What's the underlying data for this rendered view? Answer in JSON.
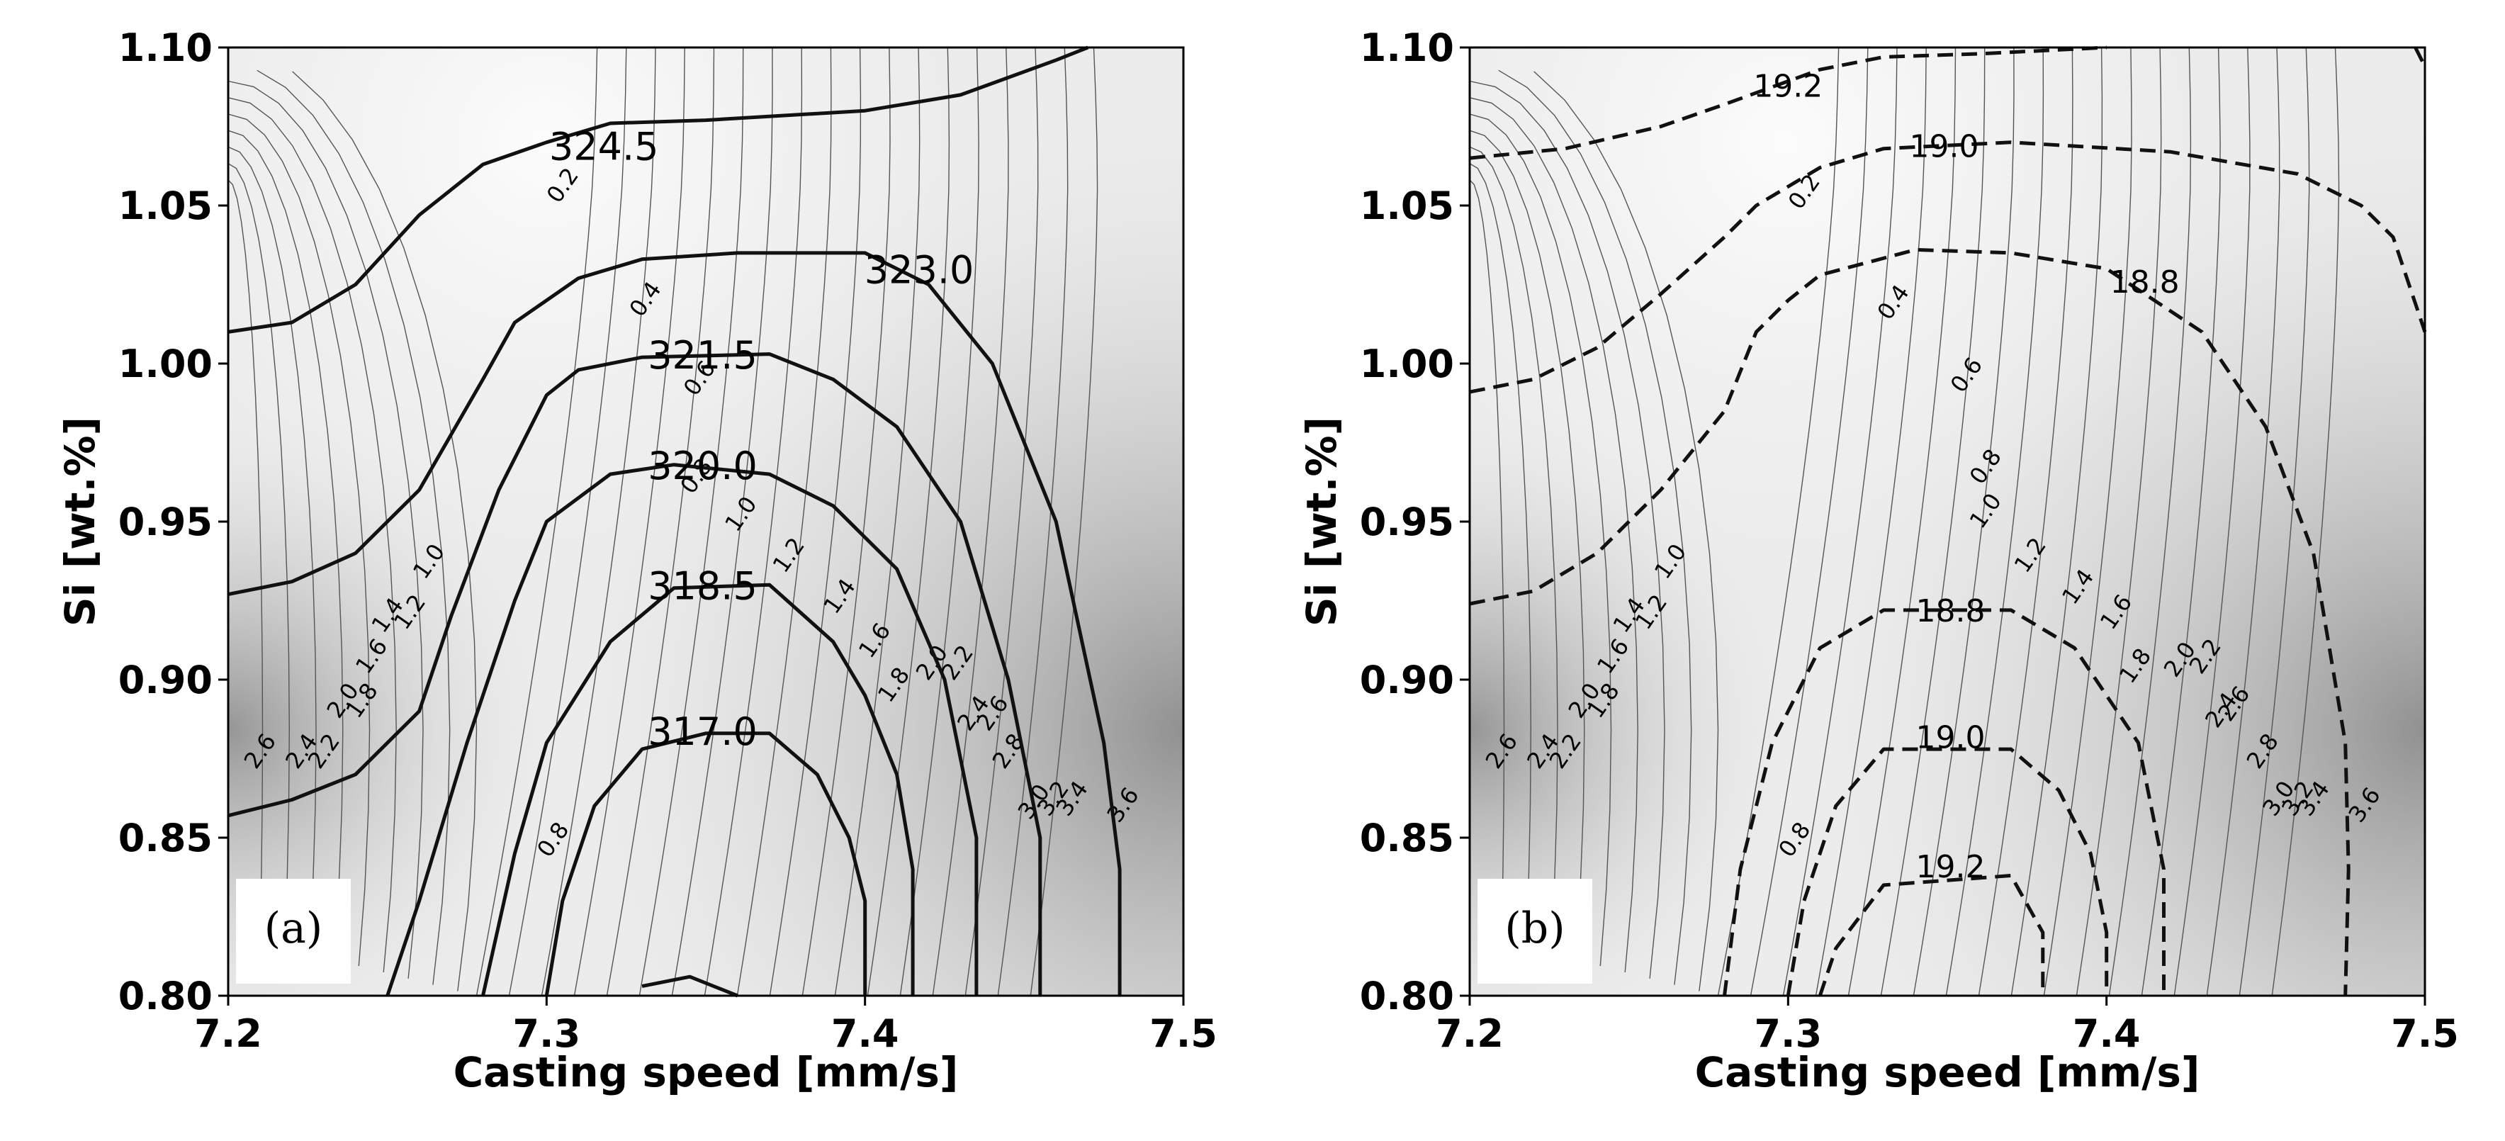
{
  "colors": {
    "bg_light": "#f7f7f7",
    "bg_dark": "#9a9a9a",
    "thin_line": "#555555",
    "thick_line": "#111111"
  },
  "chart_data": [
    {
      "type": "contour",
      "panel_label": "(a)",
      "xlabel": "Casting speed [mm/s]",
      "ylabel": "Si [wt.%]",
      "xlim": [
        7.2,
        7.5
      ],
      "ylim": [
        0.8,
        1.1
      ],
      "xticks": [
        "7.2",
        "7.3",
        "7.4",
        "7.5"
      ],
      "yticks": [
        "0.80",
        "0.85",
        "0.90",
        "0.95",
        "1.00",
        "1.05",
        "1.10"
      ],
      "background_levels": [
        "0.2",
        "0.4",
        "0.6",
        "0.8",
        "1.0",
        "1.2",
        "1.4",
        "1.6",
        "1.8",
        "2.0",
        "2.2",
        "2.4",
        "2.6",
        "2.8",
        "3.0",
        "3.2",
        "3.4",
        "3.6"
      ],
      "background_labels": [
        {
          "text": "0.2",
          "x": 7.307,
          "y": 1.055
        },
        {
          "text": "0.4",
          "x": 7.333,
          "y": 1.019
        },
        {
          "text": "0.6",
          "x": 7.35,
          "y": 0.994
        },
        {
          "text": "0.8",
          "x": 7.349,
          "y": 0.963
        },
        {
          "text": "1.0",
          "x": 7.363,
          "y": 0.951
        },
        {
          "text": "1.2",
          "x": 7.378,
          "y": 0.938
        },
        {
          "text": "1.4",
          "x": 7.394,
          "y": 0.925
        },
        {
          "text": "1.6",
          "x": 7.405,
          "y": 0.911
        },
        {
          "text": "1.8",
          "x": 7.411,
          "y": 0.897
        },
        {
          "text": "2.0",
          "x": 7.423,
          "y": 0.904
        },
        {
          "text": "2.2",
          "x": 7.431,
          "y": 0.904
        },
        {
          "text": "2.4",
          "x": 7.436,
          "y": 0.888
        },
        {
          "text": "2.6",
          "x": 7.442,
          "y": 0.888
        },
        {
          "text": "2.8",
          "x": 7.447,
          "y": 0.876
        },
        {
          "text": "3.0",
          "x": 7.455,
          "y": 0.86
        },
        {
          "text": "3.2",
          "x": 7.461,
          "y": 0.861
        },
        {
          "text": "3.4",
          "x": 7.467,
          "y": 0.861
        },
        {
          "text": "3.6",
          "x": 7.483,
          "y": 0.859
        },
        {
          "text": "1.0",
          "x": 7.265,
          "y": 0.936
        },
        {
          "text": "1.2",
          "x": 7.259,
          "y": 0.92
        },
        {
          "text": "1.4",
          "x": 7.252,
          "y": 0.919
        },
        {
          "text": "1.6",
          "x": 7.247,
          "y": 0.906
        },
        {
          "text": "1.8",
          "x": 7.244,
          "y": 0.892
        },
        {
          "text": "2.0",
          "x": 7.238,
          "y": 0.892
        },
        {
          "text": "2.2",
          "x": 7.232,
          "y": 0.876
        },
        {
          "text": "2.4",
          "x": 7.225,
          "y": 0.876
        },
        {
          "text": "2.6",
          "x": 7.212,
          "y": 0.876
        },
        {
          "text": "0.8",
          "x": 7.304,
          "y": 0.848
        }
      ],
      "overlay_style": "solid",
      "overlay_contours": [
        {
          "label": "324.5",
          "label_at": [
            7.318,
            1.068
          ],
          "points": [
            [
              7.2,
              1.01
            ],
            [
              7.22,
              1.013
            ],
            [
              7.24,
              1.025
            ],
            [
              7.26,
              1.047
            ],
            [
              7.28,
              1.063
            ],
            [
              7.3,
              1.07
            ],
            [
              7.32,
              1.076
            ],
            [
              7.35,
              1.077
            ],
            [
              7.4,
              1.08
            ],
            [
              7.43,
              1.085
            ],
            [
              7.46,
              1.096
            ],
            [
              7.47,
              1.1
            ]
          ]
        },
        {
          "label": "323.0",
          "label_at": [
            7.417,
            1.029
          ],
          "points": [
            [
              7.2,
              0.927
            ],
            [
              7.22,
              0.931
            ],
            [
              7.24,
              0.94
            ],
            [
              7.26,
              0.96
            ],
            [
              7.28,
              0.995
            ],
            [
              7.29,
              1.013
            ],
            [
              7.31,
              1.027
            ],
            [
              7.33,
              1.033
            ],
            [
              7.36,
              1.035
            ],
            [
              7.4,
              1.035
            ],
            [
              7.42,
              1.025
            ],
            [
              7.44,
              1.0
            ],
            [
              7.46,
              0.95
            ],
            [
              7.475,
              0.88
            ],
            [
              7.48,
              0.84
            ],
            [
              7.48,
              0.8
            ]
          ]
        },
        {
          "label": "321.5",
          "label_at": [
            7.349,
            1.002
          ],
          "points": [
            [
              7.2,
              0.857
            ],
            [
              7.22,
              0.862
            ],
            [
              7.24,
              0.87
            ],
            [
              7.26,
              0.89
            ],
            [
              7.27,
              0.92
            ],
            [
              7.285,
              0.96
            ],
            [
              7.3,
              0.99
            ],
            [
              7.31,
              0.998
            ],
            [
              7.33,
              1.002
            ],
            [
              7.37,
              1.003
            ],
            [
              7.39,
              0.995
            ],
            [
              7.41,
              0.98
            ],
            [
              7.43,
              0.95
            ],
            [
              7.445,
              0.9
            ],
            [
              7.455,
              0.85
            ],
            [
              7.455,
              0.8
            ]
          ]
        },
        {
          "label": "320.0",
          "label_at": [
            7.349,
            0.967
          ],
          "points": [
            [
              7.25,
              0.8
            ],
            [
              7.26,
              0.83
            ],
            [
              7.275,
              0.88
            ],
            [
              7.29,
              0.925
            ],
            [
              7.3,
              0.95
            ],
            [
              7.32,
              0.965
            ],
            [
              7.34,
              0.968
            ],
            [
              7.37,
              0.965
            ],
            [
              7.39,
              0.955
            ],
            [
              7.41,
              0.935
            ],
            [
              7.425,
              0.9
            ],
            [
              7.435,
              0.85
            ],
            [
              7.435,
              0.8
            ]
          ]
        },
        {
          "label": "318.5",
          "label_at": [
            7.349,
            0.929
          ],
          "points": [
            [
              7.28,
              0.8
            ],
            [
              7.29,
              0.845
            ],
            [
              7.3,
              0.88
            ],
            [
              7.32,
              0.912
            ],
            [
              7.34,
              0.929
            ],
            [
              7.37,
              0.93
            ],
            [
              7.39,
              0.912
            ],
            [
              7.4,
              0.895
            ],
            [
              7.41,
              0.87
            ],
            [
              7.415,
              0.84
            ],
            [
              7.415,
              0.8
            ]
          ]
        },
        {
          "label": "317.0",
          "label_at": [
            7.349,
            0.883
          ],
          "points": [
            [
              7.3,
              0.8
            ],
            [
              7.305,
              0.83
            ],
            [
              7.315,
              0.86
            ],
            [
              7.33,
              0.878
            ],
            [
              7.35,
              0.883
            ],
            [
              7.37,
              0.883
            ],
            [
              7.385,
              0.87
            ],
            [
              7.395,
              0.85
            ],
            [
              7.4,
              0.83
            ],
            [
              7.4,
              0.8
            ]
          ]
        },
        {
          "label": "",
          "label_at": null,
          "points": [
            [
              7.33,
              0.803
            ],
            [
              7.345,
              0.806
            ],
            [
              7.355,
              0.802
            ],
            [
              7.36,
              0.8
            ]
          ]
        }
      ]
    },
    {
      "type": "contour",
      "panel_label": "(b)",
      "xlabel": "Casting speed [mm/s]",
      "ylabel": "Si [wt.%]",
      "xlim": [
        7.2,
        7.5
      ],
      "ylim": [
        0.8,
        1.1
      ],
      "xticks": [
        "7.2",
        "7.3",
        "7.4",
        "7.5"
      ],
      "yticks": [
        "0.80",
        "0.85",
        "0.90",
        "0.95",
        "1.00",
        "1.05",
        "1.10"
      ],
      "background_levels": [
        "0.2",
        "0.4",
        "0.6",
        "0.8",
        "1.0",
        "1.2",
        "1.4",
        "1.6",
        "1.8",
        "2.0",
        "2.2",
        "2.4",
        "2.6",
        "2.8",
        "3.0",
        "3.2",
        "3.4",
        "3.6"
      ],
      "background_labels": [
        {
          "text": "0.2",
          "x": 7.307,
          "y": 1.053
        },
        {
          "text": "0.4",
          "x": 7.335,
          "y": 1.018
        },
        {
          "text": "0.6",
          "x": 7.358,
          "y": 0.995
        },
        {
          "text": "0.8",
          "x": 7.364,
          "y": 0.966
        },
        {
          "text": "1.0",
          "x": 7.364,
          "y": 0.952
        },
        {
          "text": "1.2",
          "x": 7.378,
          "y": 0.938
        },
        {
          "text": "1.4",
          "x": 7.393,
          "y": 0.928
        },
        {
          "text": "1.6",
          "x": 7.405,
          "y": 0.92
        },
        {
          "text": "1.8",
          "x": 7.411,
          "y": 0.903
        },
        {
          "text": "2.0",
          "x": 7.425,
          "y": 0.905
        },
        {
          "text": "2.2",
          "x": 7.433,
          "y": 0.906
        },
        {
          "text": "2.4",
          "x": 7.438,
          "y": 0.889
        },
        {
          "text": "2.6",
          "x": 7.442,
          "y": 0.891
        },
        {
          "text": "2.8",
          "x": 7.451,
          "y": 0.876
        },
        {
          "text": "3.0",
          "x": 7.456,
          "y": 0.861
        },
        {
          "text": "3.2",
          "x": 7.462,
          "y": 0.861
        },
        {
          "text": "3.4",
          "x": 7.467,
          "y": 0.861
        },
        {
          "text": "3.6",
          "x": 7.483,
          "y": 0.859
        },
        {
          "text": "1.0",
          "x": 7.265,
          "y": 0.936
        },
        {
          "text": "1.2",
          "x": 7.259,
          "y": 0.92
        },
        {
          "text": "1.4",
          "x": 7.252,
          "y": 0.919
        },
        {
          "text": "1.6",
          "x": 7.247,
          "y": 0.906
        },
        {
          "text": "1.8",
          "x": 7.244,
          "y": 0.892
        },
        {
          "text": "2.0",
          "x": 7.238,
          "y": 0.892
        },
        {
          "text": "2.2",
          "x": 7.232,
          "y": 0.876
        },
        {
          "text": "2.4",
          "x": 7.225,
          "y": 0.876
        },
        {
          "text": "2.6",
          "x": 7.212,
          "y": 0.876
        },
        {
          "text": "0.8",
          "x": 7.304,
          "y": 0.848
        }
      ],
      "overlay_style": "dashed",
      "overlay_contours": [
        {
          "label": "19.2",
          "label_at": [
            7.3,
            1.088
          ],
          "points": [
            [
              7.2,
              1.065
            ],
            [
              7.23,
              1.068
            ],
            [
              7.26,
              1.075
            ],
            [
              7.28,
              1.082
            ],
            [
              7.31,
              1.093
            ],
            [
              7.33,
              1.097
            ],
            [
              7.36,
              1.098
            ],
            [
              7.4,
              1.1
            ]
          ]
        },
        {
          "label": "",
          "label_at": null,
          "points": [
            [
              7.497,
              1.1
            ],
            [
              7.5,
              1.094
            ]
          ]
        },
        {
          "label": "19.0",
          "label_at": [
            7.349,
            1.069
          ],
          "points": [
            [
              7.2,
              0.991
            ],
            [
              7.22,
              0.995
            ],
            [
              7.24,
              1.005
            ],
            [
              7.26,
              1.022
            ],
            [
              7.28,
              1.04
            ],
            [
              7.29,
              1.05
            ],
            [
              7.31,
              1.062
            ],
            [
              7.33,
              1.068
            ],
            [
              7.37,
              1.07
            ],
            [
              7.42,
              1.067
            ],
            [
              7.46,
              1.06
            ],
            [
              7.48,
              1.05
            ],
            [
              7.49,
              1.04
            ],
            [
              7.5,
              1.01
            ]
          ]
        },
        {
          "label": "18.8",
          "label_at": [
            7.412,
            1.026
          ],
          "points": [
            [
              7.2,
              0.924
            ],
            [
              7.22,
              0.928
            ],
            [
              7.24,
              0.94
            ],
            [
              7.26,
              0.96
            ],
            [
              7.28,
              0.985
            ],
            [
              7.29,
              1.01
            ],
            [
              7.3,
              1.02
            ],
            [
              7.31,
              1.028
            ],
            [
              7.34,
              1.036
            ],
            [
              7.37,
              1.035
            ],
            [
              7.4,
              1.03
            ],
            [
              7.43,
              1.01
            ],
            [
              7.45,
              0.98
            ],
            [
              7.465,
              0.94
            ],
            [
              7.475,
              0.88
            ],
            [
              7.476,
              0.84
            ],
            [
              7.475,
              0.8
            ]
          ]
        },
        {
          "label": "18.8",
          "label_at": [
            7.351,
            0.922
          ],
          "points": [
            [
              7.28,
              0.8
            ],
            [
              7.285,
              0.84
            ],
            [
              7.295,
              0.88
            ],
            [
              7.31,
              0.91
            ],
            [
              7.33,
              0.922
            ],
            [
              7.37,
              0.922
            ],
            [
              7.39,
              0.91
            ],
            [
              7.41,
              0.88
            ],
            [
              7.418,
              0.84
            ],
            [
              7.418,
              0.8
            ]
          ]
        },
        {
          "label": "19.0",
          "label_at": [
            7.351,
            0.882
          ],
          "points": [
            [
              7.3,
              0.8
            ],
            [
              7.305,
              0.83
            ],
            [
              7.315,
              0.86
            ],
            [
              7.33,
              0.878
            ],
            [
              7.37,
              0.878
            ],
            [
              7.385,
              0.865
            ],
            [
              7.395,
              0.845
            ],
            [
              7.4,
              0.82
            ],
            [
              7.4,
              0.8
            ]
          ]
        },
        {
          "label": "19.2",
          "label_at": [
            7.351,
            0.841
          ],
          "points": [
            [
              7.31,
              0.8
            ],
            [
              7.315,
              0.815
            ],
            [
              7.33,
              0.835
            ],
            [
              7.37,
              0.838
            ],
            [
              7.38,
              0.82
            ],
            [
              7.38,
              0.8
            ]
          ]
        }
      ]
    }
  ]
}
